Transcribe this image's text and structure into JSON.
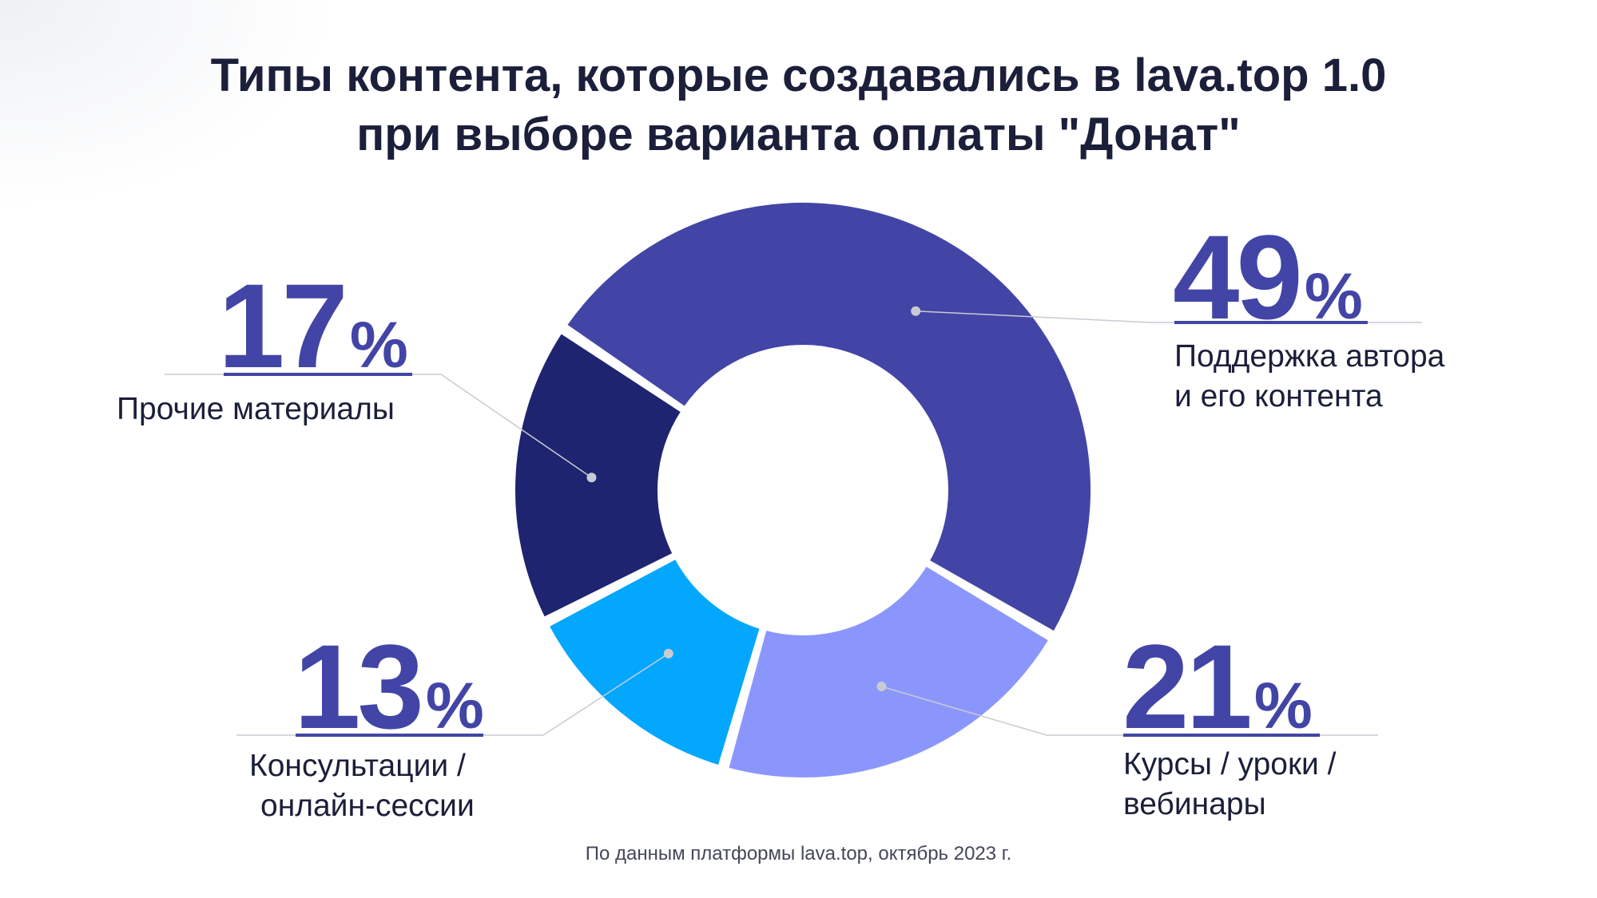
{
  "chart_data": {
    "type": "pie",
    "variant": "donut",
    "title_lines": [
      "Типы контента, которые создавались в lava.top 1.0",
      "при выборе варианта оплаты \"Донат\""
    ],
    "slices": [
      {
        "label_lines": [
          "Поддержка автора",
          "и его контента"
        ],
        "value": 49,
        "display": "49",
        "color": "#4245a6"
      },
      {
        "label_lines": [
          "Курсы / уроки /",
          "вебинары"
        ],
        "value": 21,
        "display": "21",
        "color": "#8b96fc"
      },
      {
        "label_lines": [
          "Консультации /",
          "онлайн-сессии"
        ],
        "value": 13,
        "display": "13",
        "color": "#03a7fd"
      },
      {
        "label_lines": [
          "Прочие материалы"
        ],
        "value": 17,
        "display": "17",
        "color": "#1f2470"
      }
    ],
    "percent_sign": "%",
    "source": "По данным платформы lava.top, октябрь 2023 г."
  }
}
